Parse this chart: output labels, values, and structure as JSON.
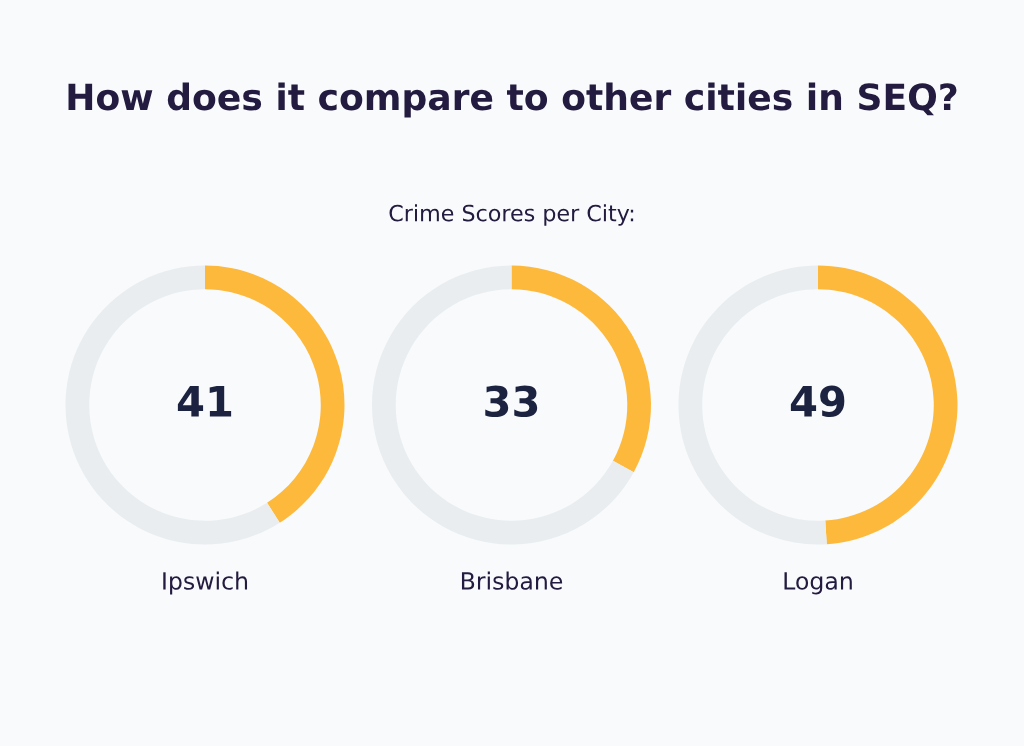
{
  "chart_data": [
    {
      "type": "donut",
      "xlabel": "Ipswich",
      "categories": [
        null,
        null
      ],
      "values": [
        41,
        59
      ],
      "colors": [
        "#fdb93c",
        "#e9edf0"
      ],
      "value_labels": [
        "41",
        null
      ]
    },
    {
      "type": "donut",
      "title": "How does it compare to other cities in SEQ?",
      "subtitle": "Crime Scores per City:",
      "xlabel": "Brisbane",
      "categories": [
        null,
        null
      ],
      "values": [
        33,
        67
      ],
      "colors": [
        "#fdb93c",
        "#e9edf0"
      ],
      "value_labels": [
        "33",
        null
      ]
    },
    {
      "type": "donut",
      "xlabel": "Logan",
      "categories": [
        null,
        null
      ],
      "values": [
        49,
        51
      ],
      "colors": [
        "#fdb93c",
        "#e9edf0"
      ],
      "value_labels": [
        "49",
        null
      ]
    }
  ]
}
